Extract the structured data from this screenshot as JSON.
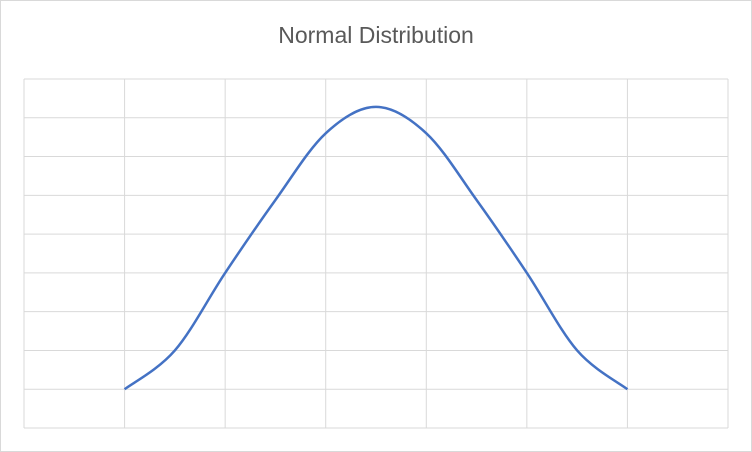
{
  "chart_data": {
    "type": "line",
    "title": "Normal Distribution",
    "x": [
      -2.5,
      -2,
      -1.5,
      -1,
      -0.5,
      0,
      0.5,
      1,
      1.5,
      2,
      2.5
    ],
    "series": [
      {
        "color": "#4472c4",
        "values": [
          0.05,
          0.1,
          0.2,
          0.294,
          0.38,
          0.414,
          0.38,
          0.294,
          0.2,
          0.1,
          0.05
        ]
      }
    ],
    "xlim": [
      -3.5,
      3.5
    ],
    "xticks": [
      -3.5,
      -2.5,
      -1.5,
      -0.5,
      0.5,
      1.5,
      2.5,
      3.5
    ],
    "ylim": [
      0,
      0.45
    ],
    "yticks": [
      0,
      0.05,
      0.1,
      0.15,
      0.2,
      0.25,
      0.3,
      0.35,
      0.4,
      0.45
    ],
    "grid": true,
    "smooth": true
  }
}
